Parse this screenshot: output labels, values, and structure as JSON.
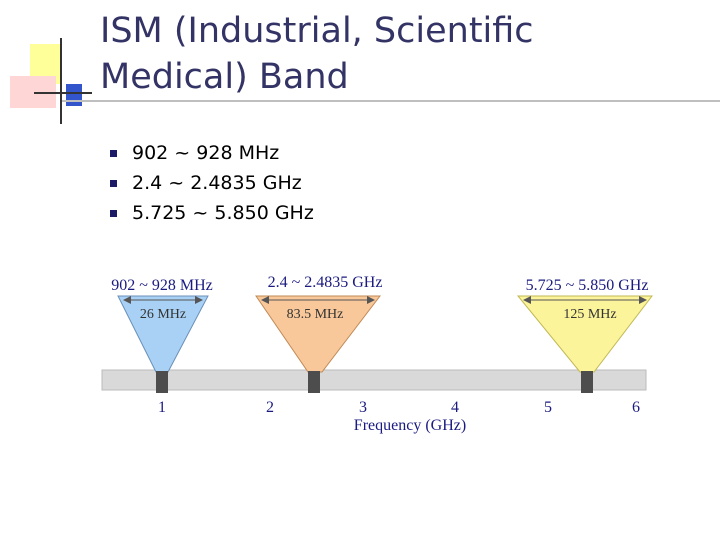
{
  "slide": {
    "title_line1": "ISM (Industrial, Scientific",
    "title_line2": "Medical) Band"
  },
  "bullets": [
    "902 ~ 928 MHz",
    "2.4 ~ 2.4835 GHz",
    "5.725 ~ 5.850 GHz"
  ],
  "colors": {
    "title": "#333366",
    "bullet": "#1a1a66",
    "band_blue": "#a9d1f5",
    "band_orange": "#f8c89a",
    "band_yellow": "#fbf49a",
    "axis_bar": "#d9d9d9",
    "band_label": "#1a1a80"
  },
  "diagram": {
    "axis_label": "Frequency (GHz)",
    "ticks": [
      "1",
      "2",
      "3",
      "4",
      "5",
      "6"
    ],
    "bands": [
      {
        "range_label": "902 ~ 928 MHz",
        "width_label": "26 MHz",
        "color": "#a9d1f5"
      },
      {
        "range_label": "2.4 ~ 2.4835 GHz",
        "width_label": "83.5 MHz",
        "color": "#f8c89a"
      },
      {
        "range_label": "5.725 ~ 5.850 GHz",
        "width_label": "125 MHz",
        "color": "#fbf49a"
      }
    ]
  }
}
